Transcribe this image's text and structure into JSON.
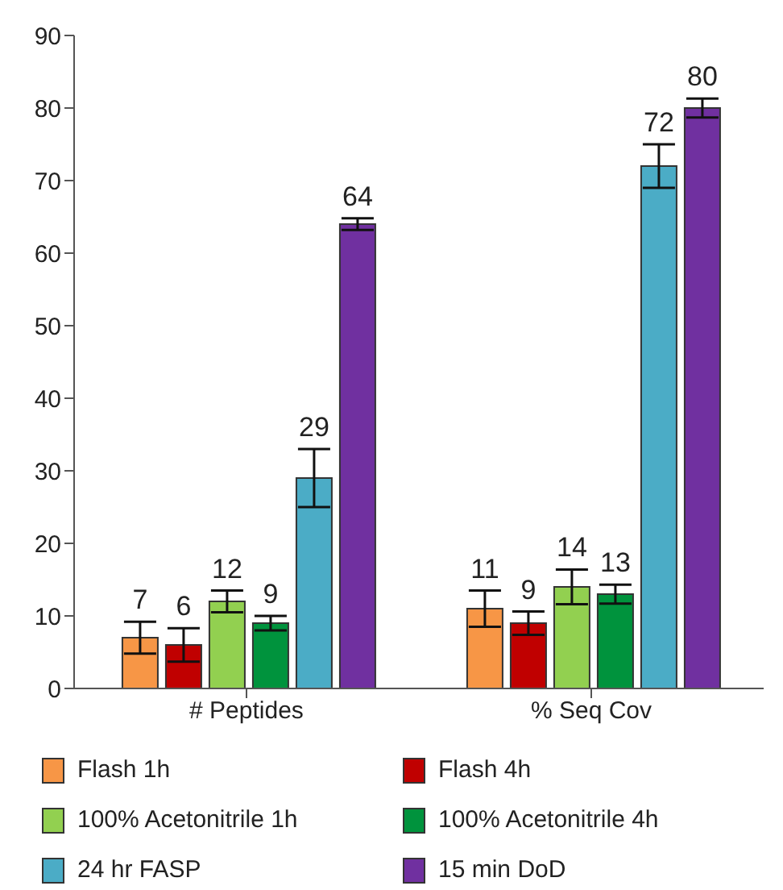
{
  "chart_data": {
    "type": "bar",
    "categories": [
      "# Peptides",
      "% Seq Cov"
    ],
    "series": [
      {
        "name": "Flash 1h",
        "color": "#f79646",
        "values": [
          7,
          11
        ],
        "errors": [
          2.2,
          2.5
        ]
      },
      {
        "name": "Flash 4h",
        "color": "#c00000",
        "values": [
          6,
          9
        ],
        "errors": [
          2.3,
          1.6
        ]
      },
      {
        "name": "100% Acetonitrile 1h",
        "color": "#92d050",
        "values": [
          12,
          14
        ],
        "errors": [
          1.5,
          2.4
        ]
      },
      {
        "name": "100% Acetonitrile 4h",
        "color": "#00933d",
        "values": [
          9,
          13
        ],
        "errors": [
          1,
          1.3
        ]
      },
      {
        "name": "24 hr FASP",
        "color": "#4bacc6",
        "values": [
          29,
          72
        ],
        "errors": [
          4,
          3
        ]
      },
      {
        "name": "15 min DoD",
        "color": "#7030a0",
        "values": [
          64,
          80
        ],
        "errors": [
          0.8,
          1.3
        ]
      }
    ],
    "ylim": [
      0,
      90
    ],
    "yticks": [
      0,
      10,
      20,
      30,
      40,
      50,
      60,
      70,
      80,
      90
    ],
    "data_labels": true,
    "grid": false,
    "legend": "bottom"
  }
}
